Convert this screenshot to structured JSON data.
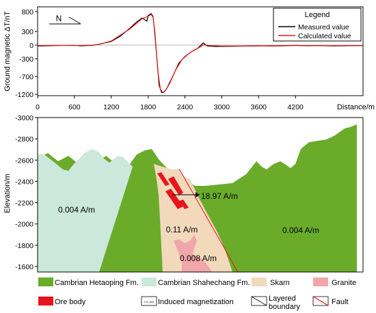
{
  "chart_data": [
    {
      "type": "line",
      "title": "",
      "ylabel": "Ground magnetic ΔT/nT",
      "xlabel": "Distance/m",
      "xlim": [
        0,
        5300
      ],
      "ylim": [
        -1200,
        800
      ],
      "x_ticks": [
        "0",
        "600",
        "1200",
        "1800",
        "2400",
        "3000",
        "3600",
        "4200"
      ],
      "y_ticks": [
        "800",
        "300",
        "0",
        "-300",
        "-700",
        "-1200"
      ],
      "north_label": "N",
      "grid": false,
      "legend": {
        "title": "Legend",
        "position": "top-right",
        "items": [
          {
            "label": "Measured value",
            "color": "#000000"
          },
          {
            "label": "Calculated value",
            "color": "#e41a1c"
          }
        ]
      },
      "series": [
        {
          "name": "Measured value",
          "color": "#000000",
          "points": [
            [
              0,
              -20
            ],
            [
              300,
              -10
            ],
            [
              600,
              -5
            ],
            [
              700,
              -15
            ],
            [
              900,
              -5
            ],
            [
              1000,
              20
            ],
            [
              1200,
              80
            ],
            [
              1350,
              200
            ],
            [
              1500,
              380
            ],
            [
              1600,
              520
            ],
            [
              1700,
              640
            ],
            [
              1780,
              560
            ],
            [
              1800,
              700
            ],
            [
              1850,
              750
            ],
            [
              1880,
              680
            ],
            [
              1900,
              400
            ],
            [
              1950,
              -400
            ],
            [
              1980,
              -950
            ],
            [
              2020,
              -1150
            ],
            [
              2060,
              -1130
            ],
            [
              2100,
              -1050
            ],
            [
              2200,
              -700
            ],
            [
              2300,
              -400
            ],
            [
              2400,
              -250
            ],
            [
              2500,
              -150
            ],
            [
              2600,
              -80
            ],
            [
              2700,
              50
            ],
            [
              2760,
              -20
            ],
            [
              2900,
              -30
            ],
            [
              3200,
              -25
            ],
            [
              3600,
              -15
            ],
            [
              3800,
              -20
            ],
            [
              4000,
              -15
            ],
            [
              4200,
              -5
            ],
            [
              4400,
              -15
            ],
            [
              4600,
              -10
            ],
            [
              4800,
              -20
            ],
            [
              5000,
              -15
            ],
            [
              5300,
              -10
            ]
          ]
        },
        {
          "name": "Calculated value",
          "color": "#e41a1c",
          "points": [
            [
              0,
              -10
            ],
            [
              300,
              -5
            ],
            [
              600,
              -10
            ],
            [
              900,
              0
            ],
            [
              1000,
              15
            ],
            [
              1200,
              90
            ],
            [
              1350,
              220
            ],
            [
              1500,
              360
            ],
            [
              1600,
              490
            ],
            [
              1700,
              620
            ],
            [
              1800,
              680
            ],
            [
              1850,
              730
            ],
            [
              1880,
              660
            ],
            [
              1910,
              300
            ],
            [
              1960,
              -600
            ],
            [
              2000,
              -1050
            ],
            [
              2040,
              -1160
            ],
            [
              2080,
              -1100
            ],
            [
              2150,
              -900
            ],
            [
              2250,
              -550
            ],
            [
              2350,
              -320
            ],
            [
              2450,
              -200
            ],
            [
              2550,
              -110
            ],
            [
              2650,
              -40
            ],
            [
              2700,
              10
            ],
            [
              2800,
              -10
            ],
            [
              3000,
              -20
            ],
            [
              3400,
              -20
            ],
            [
              3800,
              -15
            ],
            [
              4000,
              -10
            ],
            [
              4200,
              -10
            ],
            [
              4500,
              -12
            ],
            [
              4800,
              -15
            ],
            [
              5100,
              -10
            ],
            [
              5300,
              -10
            ]
          ]
        }
      ]
    },
    {
      "type": "geologic-section",
      "ylabel": "Elevation/m",
      "ylim": [
        -3000,
        -1600
      ],
      "y_ticks": [
        "-3000",
        "-2800",
        "-2600",
        "-2400",
        "-2200",
        "-2000",
        "-1800",
        "-1600"
      ],
      "annotations": {
        "shahechang": "0.004 A/m",
        "ore": "18.97 A/m",
        "skarn": "0.11 A/m",
        "hetaoping": "0.004 A/m",
        "granite": "0.008 A/m"
      },
      "colors": {
        "hetaoping": "#6aac2a",
        "shahechang": "#cce8dc",
        "skarn": "#f3d9bc",
        "granite": "#f1a6ab",
        "ore": "#e8141b",
        "fault": "#e8141b"
      }
    }
  ],
  "key": {
    "items": [
      {
        "label": "Cambrian Hetaoping Fm.",
        "swatch": "hetaoping"
      },
      {
        "label": "Cambrian Shahechang Fm.",
        "swatch": "shahechang"
      },
      {
        "label": "Skarn",
        "swatch": "skarn"
      },
      {
        "label": "Granite",
        "swatch": "granite"
      },
      {
        "label": "Ore body",
        "swatch": "ore"
      },
      {
        "label": "Induced magnetization",
        "swatch": "magnetization",
        "swatch_text": "0.11 A/m"
      },
      {
        "label": "Layered\nboundary",
        "swatch": "layered"
      },
      {
        "label": "Fault",
        "swatch": "fault"
      }
    ]
  }
}
